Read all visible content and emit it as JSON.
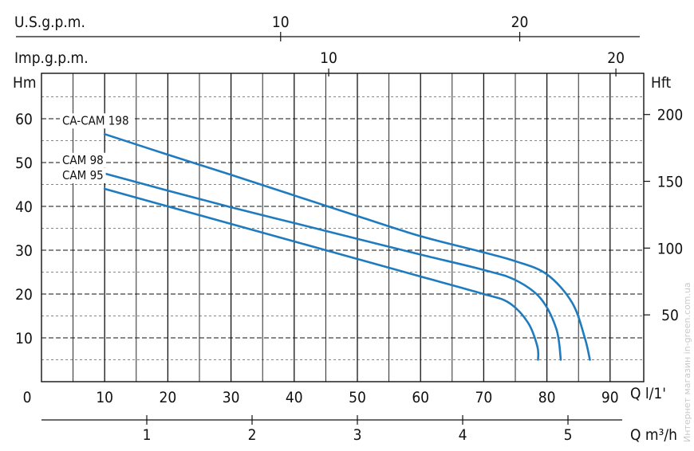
{
  "chart_data": {
    "type": "line",
    "x_axis": {
      "label": "Q l/1'",
      "range": [
        0,
        95
      ],
      "ticks": [
        0,
        10,
        20,
        30,
        40,
        50,
        60,
        70,
        80,
        90
      ],
      "tick_labels": [
        "0",
        "10",
        "20",
        "30",
        "40",
        "50",
        "60",
        "70",
        "80",
        "90"
      ]
    },
    "y_axis_left": {
      "label": "Hm",
      "range": [
        0,
        70
      ],
      "ticks": [
        10,
        20,
        30,
        40,
        50,
        60
      ],
      "tick_labels": [
        "10",
        "20",
        "30",
        "40",
        "50",
        "60"
      ]
    },
    "y_axis_right": {
      "label": "Hft",
      "ticks": [
        50,
        100,
        150,
        200
      ],
      "tick_labels": [
        "50",
        "100",
        "150",
        "200"
      ]
    },
    "top_axis_usgpm": {
      "label": "U.S.g.p.m.",
      "ticks": [
        10,
        20
      ],
      "tick_labels": [
        "10",
        "20"
      ]
    },
    "top_axis_impgpm": {
      "label": "Imp.g.p.m.",
      "ticks": [
        10,
        20
      ],
      "tick_labels": [
        "10",
        "20"
      ]
    },
    "bottom_axis_m3h": {
      "label": "Q m³/h",
      "ticks": [
        1,
        2,
        3,
        4,
        5
      ],
      "tick_labels": [
        "1",
        "2",
        "3",
        "4",
        "5"
      ]
    },
    "grid": true,
    "series": [
      {
        "name": "CA-CAM 198",
        "color": "#1f7bbf",
        "points": [
          [
            10,
            56.5
          ],
          [
            20,
            51.8
          ],
          [
            30,
            47.2
          ],
          [
            40,
            42.5
          ],
          [
            50,
            37.8
          ],
          [
            60,
            33.2
          ],
          [
            70,
            29.5
          ],
          [
            75,
            27.5
          ],
          [
            80,
            24.5
          ],
          [
            84,
            18
          ],
          [
            86,
            10
          ],
          [
            86.8,
            5
          ]
        ]
      },
      {
        "name": "CAM 98",
        "color": "#1f7bbf",
        "points": [
          [
            10,
            47.5
          ],
          [
            20,
            43.6
          ],
          [
            30,
            39.8
          ],
          [
            40,
            36.2
          ],
          [
            50,
            32.6
          ],
          [
            60,
            29
          ],
          [
            70,
            25.5
          ],
          [
            75,
            23.2
          ],
          [
            79,
            19
          ],
          [
            81.5,
            12
          ],
          [
            82.2,
            5
          ]
        ]
      },
      {
        "name": "CAM 95",
        "color": "#1f7bbf",
        "points": [
          [
            10,
            44
          ],
          [
            20,
            40
          ],
          [
            30,
            36
          ],
          [
            40,
            32
          ],
          [
            50,
            28
          ],
          [
            60,
            24
          ],
          [
            70,
            20
          ],
          [
            74,
            18
          ],
          [
            77,
            13.5
          ],
          [
            78.5,
            8
          ],
          [
            78.6,
            5
          ]
        ]
      }
    ]
  },
  "watermark": "Интернет магазин in-green.com.ua"
}
